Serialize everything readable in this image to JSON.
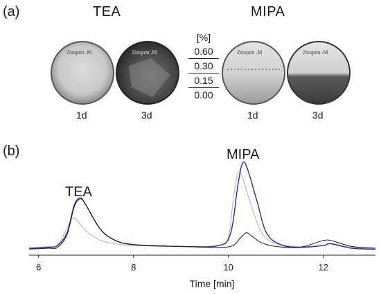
{
  "panel_a": {
    "label": "(a)",
    "groups": [
      {
        "name": "TEA",
        "days": [
          "1d",
          "3d"
        ]
      },
      {
        "name": "MIPA",
        "days": [
          "1d",
          "3d"
        ]
      }
    ],
    "legend": {
      "unit": "[%]",
      "values": [
        "0.60",
        "0.30",
        "0.15",
        "0.00"
      ]
    },
    "plate_handwriting": "Zinqum .M"
  },
  "panel_b": {
    "label": "(b)",
    "peak_labels": [
      "TEA",
      "MIPA"
    ]
  },
  "chart_data": {
    "type": "line",
    "xlabel": "Time [min]",
    "ylabel": "",
    "xlim": [
      5.8,
      13.1
    ],
    "ylim": [
      0,
      1.0
    ],
    "x_ticks": [
      6,
      8,
      10,
      12
    ],
    "x_tick_labels": [
      "6",
      "8",
      "10",
      "12"
    ],
    "grid": false,
    "series": [
      {
        "color": "#b0b0b0",
        "x": [
          5.8,
          6.2,
          6.4,
          6.6,
          6.72,
          6.85,
          7.0,
          7.3,
          7.6,
          8.0,
          9.0,
          9.8,
          10.0,
          10.1,
          10.2,
          10.3,
          10.45,
          10.7,
          11.0,
          11.5,
          12.0,
          12.2,
          12.6,
          13.1
        ],
        "y": [
          0.03,
          0.05,
          0.07,
          0.25,
          0.36,
          0.31,
          0.22,
          0.12,
          0.08,
          0.06,
          0.05,
          0.06,
          0.15,
          0.55,
          0.85,
          0.8,
          0.55,
          0.2,
          0.08,
          0.05,
          0.06,
          0.08,
          0.04,
          0.02
        ]
      },
      {
        "color": "#2b2ba0",
        "x": [
          5.8,
          6.2,
          6.4,
          6.6,
          6.75,
          6.88,
          7.0,
          7.3,
          7.6,
          8.0,
          9.0,
          9.8,
          10.05,
          10.2,
          10.3,
          10.4,
          10.6,
          10.8,
          11.1,
          11.5,
          12.0,
          12.15,
          12.6,
          13.1
        ],
        "y": [
          0.03,
          0.04,
          0.06,
          0.2,
          0.5,
          0.58,
          0.5,
          0.24,
          0.12,
          0.07,
          0.05,
          0.06,
          0.2,
          0.72,
          0.96,
          0.9,
          0.55,
          0.2,
          0.07,
          0.04,
          0.06,
          0.08,
          0.03,
          0.02
        ]
      },
      {
        "color": "#1a1a1a",
        "x": [
          5.8,
          6.2,
          6.4,
          6.6,
          6.75,
          6.88,
          7.0,
          7.3,
          7.6,
          8.0,
          9.0,
          9.8,
          10.1,
          10.25,
          10.38,
          10.5,
          10.7,
          11.0,
          11.5,
          11.9,
          12.05,
          12.2,
          12.6,
          13.1
        ],
        "y": [
          0.02,
          0.03,
          0.04,
          0.18,
          0.48,
          0.57,
          0.5,
          0.24,
          0.12,
          0.07,
          0.05,
          0.04,
          0.06,
          0.14,
          0.2,
          0.16,
          0.09,
          0.05,
          0.04,
          0.1,
          0.12,
          0.11,
          0.05,
          0.03
        ]
      }
    ]
  }
}
